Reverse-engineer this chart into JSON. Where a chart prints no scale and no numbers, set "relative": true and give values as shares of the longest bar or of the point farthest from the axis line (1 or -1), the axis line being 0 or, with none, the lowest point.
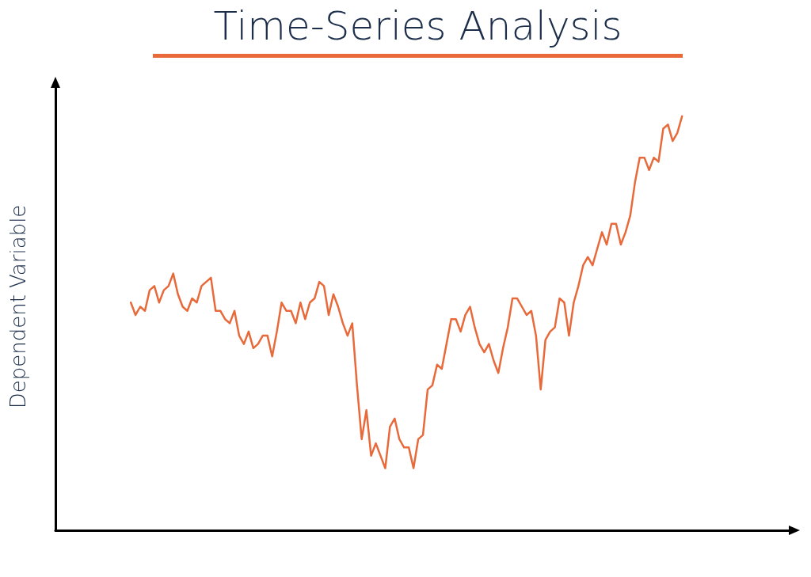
{
  "chart_data": {
    "type": "line",
    "title": "Time-Series Analysis",
    "ylabel": "Dependent Variable",
    "relative": true,
    "grid": false,
    "marker": "none",
    "line_style": "solid",
    "categories": [
      null,
      null,
      null,
      null,
      null,
      null,
      null,
      null,
      null,
      null,
      null,
      null,
      null,
      null,
      null,
      null,
      null,
      null,
      null,
      null,
      null,
      null,
      null,
      null,
      null,
      null,
      null,
      null,
      null,
      null,
      null,
      null,
      null,
      null,
      null,
      null,
      null,
      null,
      null,
      null,
      null,
      null,
      null,
      null,
      null,
      null,
      null,
      null,
      null,
      null,
      null,
      null,
      null,
      null,
      null,
      null,
      null,
      null,
      null,
      null,
      null,
      null,
      null,
      null,
      null,
      null,
      null,
      null,
      null,
      null,
      null,
      null,
      null,
      null,
      null,
      null,
      null,
      null,
      null,
      null,
      null,
      null,
      null,
      null,
      null,
      null,
      null,
      null,
      null,
      null,
      null,
      null,
      null,
      null,
      null,
      null,
      null,
      null,
      null,
      null,
      null,
      null,
      null,
      null,
      null,
      null,
      null,
      null,
      null,
      null,
      null,
      null,
      null,
      null,
      null,
      null,
      null,
      null
    ],
    "series": [
      {
        "color": "#e8693a",
        "values": [
          0.55,
          0.52,
          0.54,
          0.53,
          0.58,
          0.59,
          0.55,
          0.58,
          0.59,
          0.62,
          0.57,
          0.54,
          0.53,
          0.56,
          0.55,
          0.59,
          0.6,
          0.61,
          0.53,
          0.53,
          0.51,
          0.5,
          0.53,
          0.47,
          0.45,
          0.48,
          0.44,
          0.45,
          0.47,
          0.47,
          0.42,
          0.48,
          0.55,
          0.53,
          0.53,
          0.5,
          0.55,
          0.51,
          0.55,
          0.56,
          0.6,
          0.59,
          0.52,
          0.57,
          0.54,
          0.5,
          0.47,
          0.5,
          0.35,
          0.22,
          0.29,
          0.18,
          0.21,
          0.18,
          0.15,
          0.25,
          0.27,
          0.22,
          0.2,
          0.2,
          0.15,
          0.22,
          0.23,
          0.34,
          0.35,
          0.4,
          0.39,
          0.45,
          0.51,
          0.51,
          0.48,
          0.52,
          0.54,
          0.49,
          0.45,
          0.43,
          0.45,
          0.41,
          0.38,
          0.44,
          0.49,
          0.56,
          0.56,
          0.54,
          0.52,
          0.53,
          0.47,
          0.34,
          0.46,
          0.48,
          0.49,
          0.56,
          0.55,
          0.47,
          0.55,
          0.59,
          0.64,
          0.66,
          0.64,
          0.68,
          0.72,
          0.69,
          0.74,
          0.74,
          0.69,
          0.72,
          0.76,
          0.84,
          0.9,
          0.9,
          0.87,
          0.9,
          0.89,
          0.97,
          0.98,
          0.94,
          0.96,
          1
        ]
      }
    ]
  }
}
